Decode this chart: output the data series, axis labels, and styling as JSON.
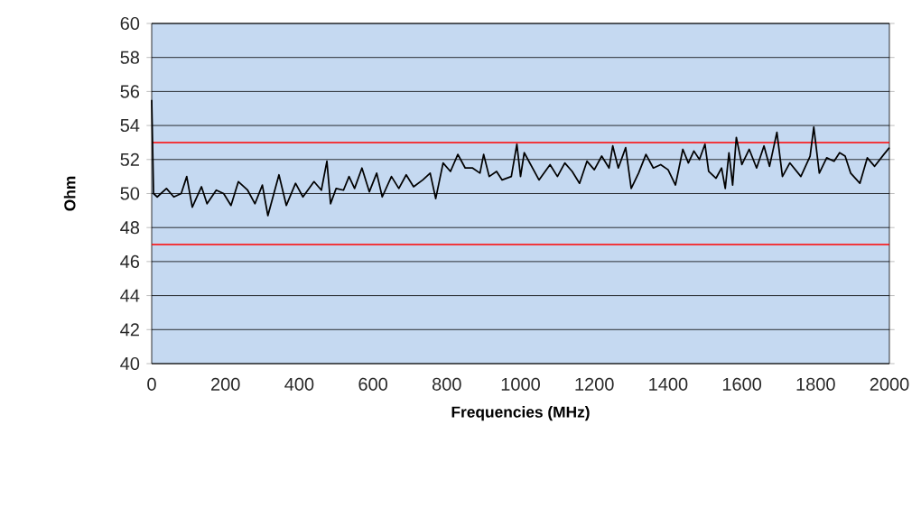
{
  "chart_data": {
    "type": "line",
    "xlabel": "Frequencies (MHz)",
    "ylabel": "Ohm",
    "x": [
      0,
      5,
      15,
      40,
      60,
      80,
      95,
      110,
      135,
      150,
      175,
      195,
      215,
      235,
      260,
      280,
      300,
      315,
      345,
      365,
      390,
      410,
      440,
      460,
      475,
      485,
      500,
      520,
      535,
      550,
      570,
      590,
      610,
      625,
      650,
      670,
      690,
      710,
      735,
      755,
      770,
      790,
      810,
      830,
      850,
      870,
      890,
      900,
      915,
      935,
      950,
      975,
      990,
      1000,
      1010,
      1050,
      1080,
      1100,
      1120,
      1140,
      1160,
      1180,
      1200,
      1220,
      1240,
      1250,
      1265,
      1285,
      1300,
      1320,
      1340,
      1360,
      1380,
      1400,
      1420,
      1440,
      1455,
      1470,
      1485,
      1500,
      1510,
      1530,
      1545,
      1555,
      1565,
      1575,
      1585,
      1600,
      1620,
      1640,
      1660,
      1675,
      1695,
      1710,
      1730,
      1760,
      1785,
      1795,
      1810,
      1830,
      1850,
      1865,
      1880,
      1895,
      1920,
      1940,
      1960,
      1985,
      2000
    ],
    "series": [
      {
        "color": "#000000",
        "values": [
          55.5,
          50,
          49.8,
          50.3,
          49.8,
          50,
          51,
          49.2,
          50.4,
          49.4,
          50.2,
          50,
          49.3,
          50.7,
          50.2,
          49.4,
          50.5,
          48.7,
          51.1,
          49.3,
          50.6,
          49.8,
          50.7,
          50.2,
          51.9,
          49.4,
          50.3,
          50.2,
          51,
          50.3,
          51.5,
          50.1,
          51.2,
          49.8,
          51,
          50.3,
          51.1,
          50.4,
          50.8,
          51.2,
          49.7,
          51.8,
          51.3,
          52.3,
          51.5,
          51.5,
          51.2,
          52.3,
          51,
          51.3,
          50.8,
          51,
          52.9,
          51,
          52.4,
          50.8,
          51.7,
          51,
          51.8,
          51.3,
          50.6,
          51.9,
          51.4,
          52.2,
          51.5,
          52.8,
          51.5,
          52.7,
          50.3,
          51.2,
          52.3,
          51.5,
          51.7,
          51.4,
          50.5,
          52.6,
          51.8,
          52.5,
          52,
          52.9,
          51.3,
          50.9,
          51.5,
          50.3,
          52.4,
          50.5,
          53.3,
          51.7,
          52.6,
          51.5,
          52.8,
          51.6,
          53.6,
          51,
          51.8,
          51,
          52.2,
          53.9,
          51.2,
          52.1,
          51.9,
          52.4,
          52.2,
          51.2,
          50.6,
          52.1,
          51.6,
          52.3,
          52.7
        ]
      }
    ],
    "xlim": [
      0,
      2000
    ],
    "ylim": [
      40,
      60
    ],
    "xticks": [
      0,
      200,
      400,
      600,
      800,
      1000,
      1200,
      1400,
      1600,
      1800,
      2000
    ],
    "yticks": [
      40,
      42,
      44,
      46,
      48,
      50,
      52,
      54,
      56,
      58,
      60
    ],
    "grid": "y",
    "ref_lines": [
      {
        "axis": "y",
        "value": 53,
        "color": "#ff0000"
      },
      {
        "axis": "y",
        "value": 47,
        "color": "#ff0000"
      }
    ]
  }
}
